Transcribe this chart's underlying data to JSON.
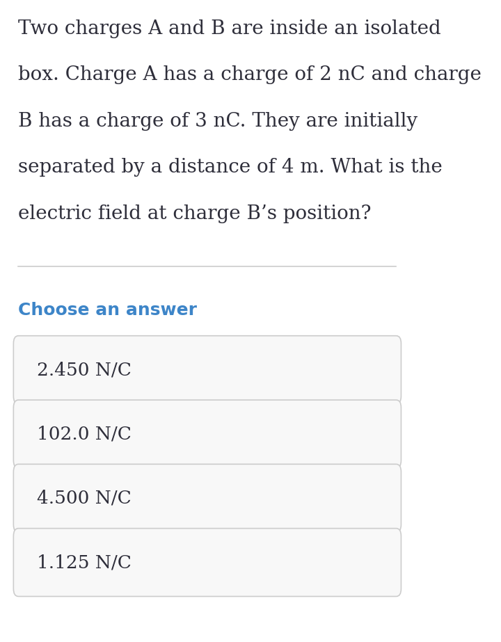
{
  "background_color": "#ffffff",
  "question_text_lines": [
    "Two charges A and B are inside an isolated",
    "box. Charge A has a charge of 2 nC and charge",
    "B has a charge of 3 nC. They are initially",
    "separated by a distance of 4 m. What is the",
    "electric field at charge B’s position?"
  ],
  "section_label": "Choose an answer",
  "section_label_color": "#3d85c8",
  "choices": [
    "2.450 N/C",
    "102.0 N/C",
    "4.500 N/C",
    "1.125 N/C"
  ],
  "choice_box_bg": "#f8f8f8",
  "choice_box_border": "#cccccc",
  "question_font_size": 20,
  "section_label_font_size": 18,
  "choice_font_size": 19,
  "text_color": "#2e2e3a",
  "divider_color": "#cccccc"
}
